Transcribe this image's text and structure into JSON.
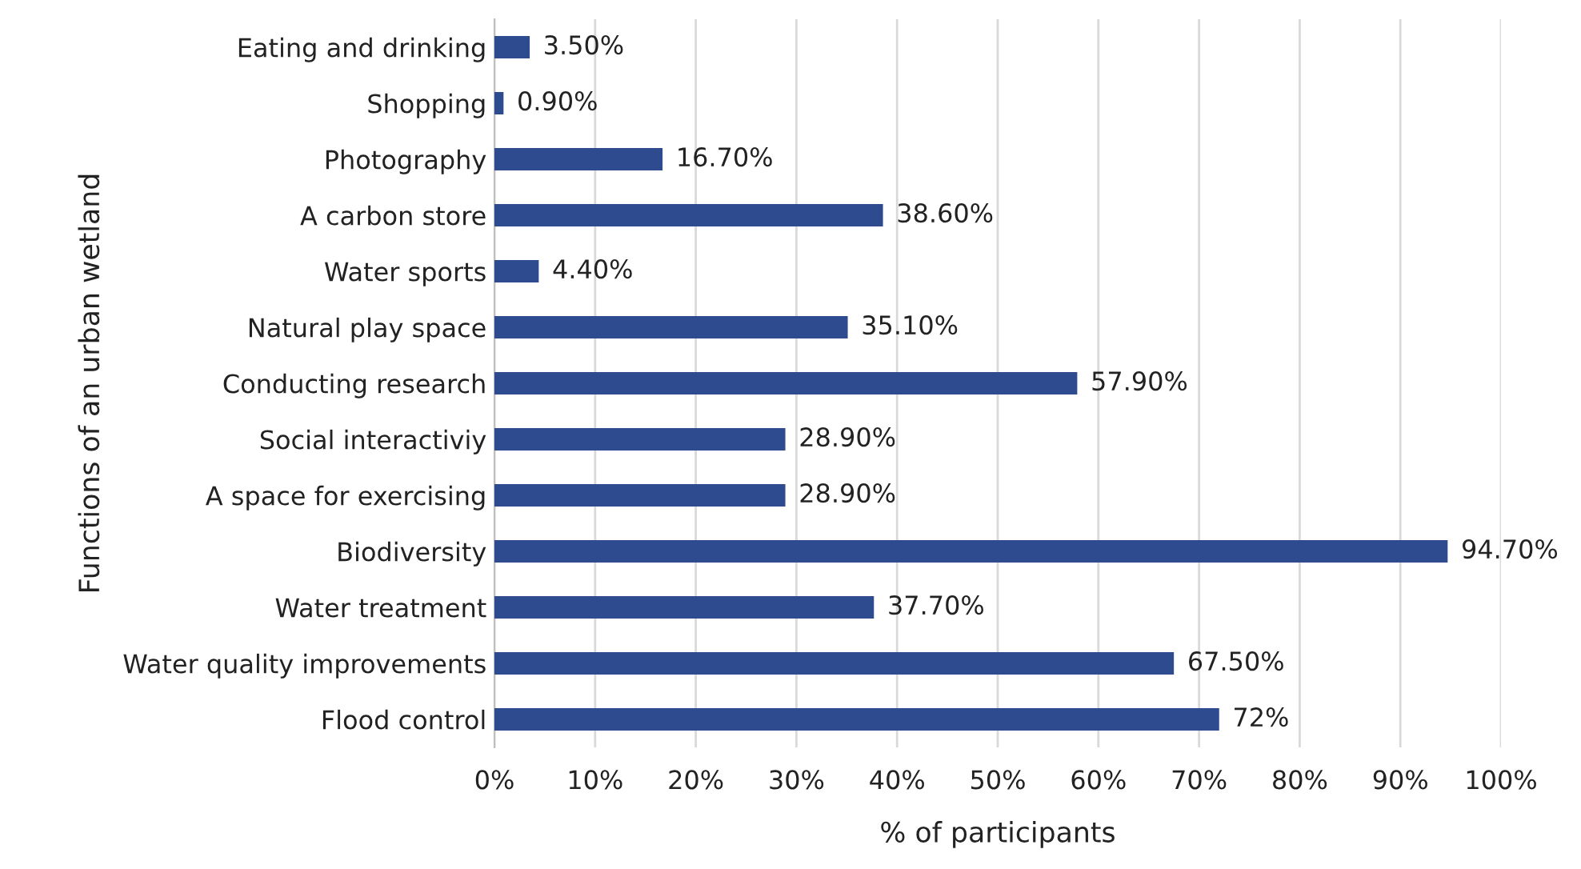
{
  "chart_data": {
    "type": "bar",
    "orientation": "horizontal",
    "xlabel": "% of participants",
    "ylabel": "Functions of an urban wetland",
    "categories": [
      "Eating and drinking",
      "Shopping",
      "Photography",
      "A carbon store",
      "Water sports",
      "Natural play space",
      "Conducting research",
      "Social interactiviy",
      "A space for exercising",
      "Biodiversity",
      "Water treatment",
      "Water quality improvements",
      "Flood control"
    ],
    "values": [
      3.5,
      0.9,
      16.7,
      38.6,
      4.4,
      35.1,
      57.9,
      28.9,
      28.9,
      94.7,
      37.7,
      67.5,
      72
    ],
    "value_labels": [
      "3.50%",
      "0.90%",
      "16.70%",
      "38.60%",
      "4.40%",
      "35.10%",
      "57.90%",
      "28.90%",
      "28.90%",
      "94.70%",
      "37.70%",
      "67.50%",
      "72%"
    ],
    "color": "#2f4b8f",
    "xlim": [
      0,
      100
    ],
    "xticks": [
      {
        "value": 0,
        "label": "0%"
      },
      {
        "value": 10,
        "label": "10%"
      },
      {
        "value": 20,
        "label": "20%"
      },
      {
        "value": 30,
        "label": "30%"
      },
      {
        "value": 40,
        "label": "40%"
      },
      {
        "value": 50,
        "label": "50%"
      },
      {
        "value": 60,
        "label": "60%"
      },
      {
        "value": 70,
        "label": "70%"
      },
      {
        "value": 80,
        "label": "80%"
      },
      {
        "value": 90,
        "label": "90%"
      },
      {
        "value": 100,
        "label": "100%"
      }
    ],
    "grid": "x",
    "legend": false
  }
}
